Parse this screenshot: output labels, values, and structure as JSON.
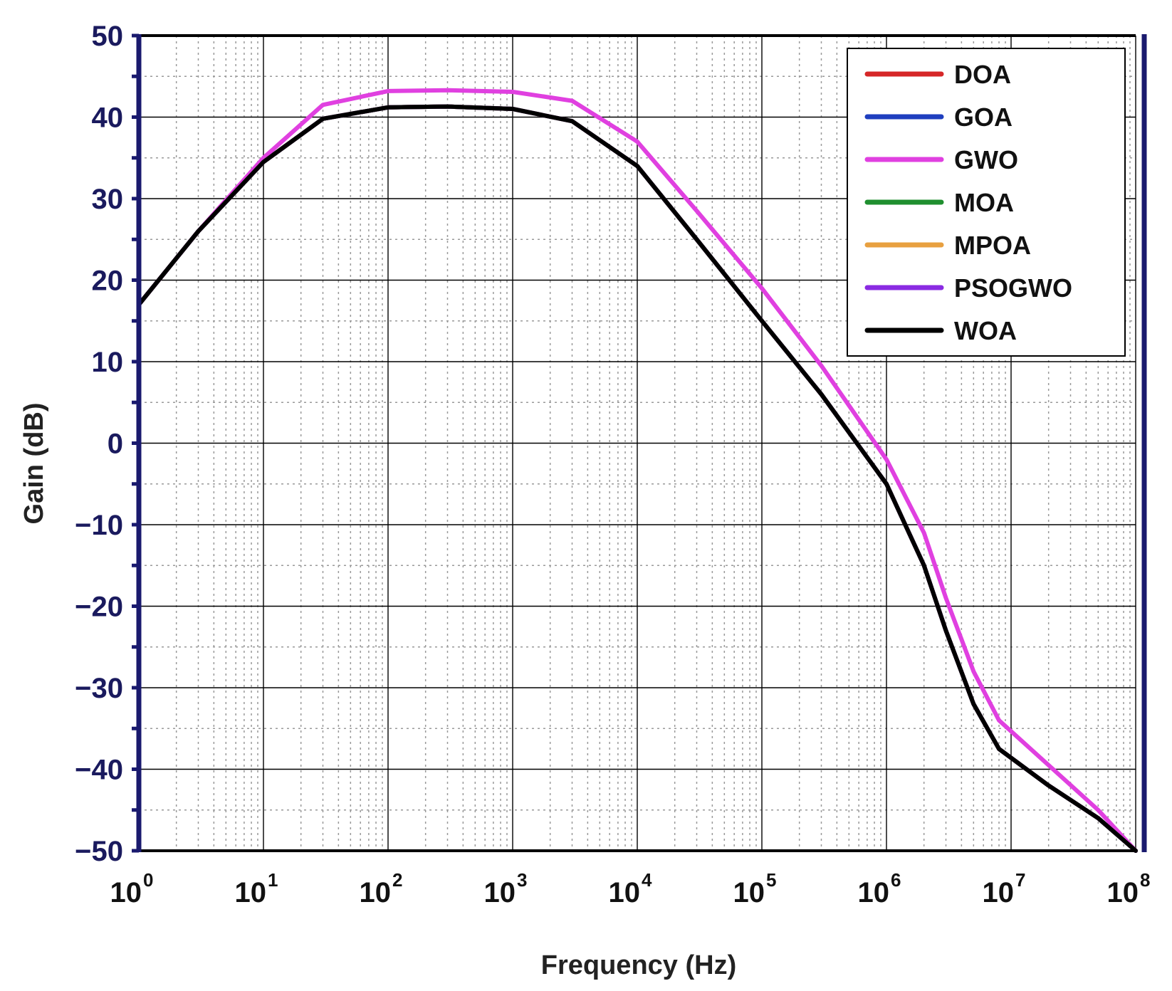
{
  "chart_data": {
    "type": "line",
    "title": "",
    "xlabel": "Frequency (Hz)",
    "ylabel": "Gain (dB)",
    "xscale": "log",
    "xlim": [
      1,
      100000000
    ],
    "ylim": [
      -50,
      50
    ],
    "grid": true,
    "legend_position": "top-right",
    "y_ticks": [
      50,
      40,
      30,
      20,
      10,
      0,
      -10,
      -20,
      -30,
      -40,
      -50
    ],
    "y_tick_labels": [
      "50",
      "40",
      "30",
      "20",
      "10",
      "0",
      "−10",
      "−20",
      "−30",
      "−40",
      "−50"
    ],
    "x_ticks": [
      {
        "value": 1,
        "base": "10",
        "exp": "0"
      },
      {
        "value": 10,
        "base": "10",
        "exp": "1"
      },
      {
        "value": 100,
        "base": "10",
        "exp": "2"
      },
      {
        "value": 1000,
        "base": "10",
        "exp": "3"
      },
      {
        "value": 10000,
        "base": "10",
        "exp": "4"
      },
      {
        "value": 100000,
        "base": "10",
        "exp": "5"
      },
      {
        "value": 1000000,
        "base": "10",
        "exp": "6"
      },
      {
        "value": 10000000,
        "base": "10",
        "exp": "7"
      },
      {
        "value": 100000000,
        "base": "10",
        "exp": "8"
      }
    ],
    "colors": {
      "axis": "#1a1a6e",
      "grid_major": "#000000",
      "grid_minor": "#999999"
    },
    "series": [
      {
        "name": "DOA",
        "color": "#d62728",
        "x": [
          1,
          3,
          10,
          30,
          100,
          300,
          1000,
          3000,
          10000,
          30000,
          100000,
          300000,
          1000000,
          2000000,
          3000000,
          5000000,
          8000000,
          20000000,
          50000000,
          100000000
        ],
        "y": [
          17,
          26,
          34.5,
          39.8,
          41.2,
          41.3,
          41,
          39.5,
          34,
          25,
          15,
          6,
          -5,
          -15,
          -23,
          -32,
          -37.5,
          -42,
          -46,
          -50
        ]
      },
      {
        "name": "GOA",
        "color": "#1f3fbf",
        "x": [
          1,
          3,
          10,
          30,
          100,
          300,
          1000,
          3000,
          10000,
          30000,
          100000,
          300000,
          1000000,
          2000000,
          3000000,
          5000000,
          8000000,
          20000000,
          50000000,
          100000000
        ],
        "y": [
          17,
          26,
          34.5,
          39.8,
          41.2,
          41.3,
          41,
          39.5,
          34,
          25,
          15,
          6,
          -5,
          -15,
          -23,
          -32,
          -37.5,
          -42,
          -46,
          -50
        ]
      },
      {
        "name": "GWO",
        "color": "#e040e0",
        "x": [
          1,
          3,
          10,
          30,
          100,
          300,
          1000,
          3000,
          10000,
          30000,
          100000,
          300000,
          1000000,
          2000000,
          3000000,
          5000000,
          8000000,
          20000000,
          50000000,
          100000000
        ],
        "y": [
          17,
          26,
          35,
          41.5,
          43.2,
          43.3,
          43.1,
          42,
          37,
          28.5,
          19,
          9.5,
          -2,
          -11,
          -19,
          -28,
          -34,
          -39.5,
          -45,
          -50
        ]
      },
      {
        "name": "MOA",
        "color": "#1f8f2f",
        "x": [
          1,
          3,
          10,
          30,
          100,
          300,
          1000,
          3000,
          10000,
          30000,
          100000,
          300000,
          1000000,
          2000000,
          3000000,
          5000000,
          8000000,
          20000000,
          50000000,
          100000000
        ],
        "y": [
          17,
          26,
          34.5,
          39.8,
          41.2,
          41.3,
          41,
          39.5,
          34,
          25,
          15,
          6,
          -5,
          -15,
          -23,
          -32,
          -37.5,
          -42,
          -46,
          -50
        ]
      },
      {
        "name": "MPOA",
        "color": "#e8a040",
        "x": [
          1,
          3,
          10,
          30,
          100,
          300,
          1000,
          3000,
          10000,
          30000,
          100000,
          300000,
          1000000,
          2000000,
          3000000,
          5000000,
          8000000,
          20000000,
          50000000,
          100000000
        ],
        "y": [
          17,
          26,
          34.5,
          39.8,
          41.2,
          41.3,
          41,
          39.5,
          34,
          25,
          15,
          6,
          -5,
          -15,
          -23,
          -32,
          -37.5,
          -42,
          -46,
          -50
        ]
      },
      {
        "name": "PSOGWO",
        "color": "#8a2be2",
        "x": [
          1,
          3,
          10,
          30,
          100,
          300,
          1000,
          3000,
          10000,
          30000,
          100000,
          300000,
          1000000,
          2000000,
          3000000,
          5000000,
          8000000,
          20000000,
          50000000,
          100000000
        ],
        "y": [
          17,
          26,
          34.5,
          39.8,
          41.2,
          41.3,
          41,
          39.5,
          34,
          25,
          15,
          6,
          -5,
          -15,
          -23,
          -32,
          -37.5,
          -42,
          -46,
          -50
        ]
      },
      {
        "name": "WOA",
        "color": "#000000",
        "x": [
          1,
          3,
          10,
          30,
          100,
          300,
          1000,
          3000,
          10000,
          30000,
          100000,
          300000,
          1000000,
          2000000,
          3000000,
          5000000,
          8000000,
          20000000,
          50000000,
          100000000
        ],
        "y": [
          17,
          26,
          34.5,
          39.8,
          41.2,
          41.3,
          41,
          39.5,
          34,
          25,
          15,
          6,
          -5,
          -15,
          -23,
          -32,
          -37.5,
          -42,
          -46,
          -50
        ]
      }
    ]
  }
}
